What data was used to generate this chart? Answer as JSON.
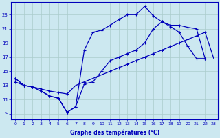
{
  "xlabel": "Graphe des températures (°C)",
  "background_color": "#cce8f0",
  "line_color": "#0000bb",
  "grid_color": "#aacccc",
  "x_ticks": [
    0,
    1,
    2,
    3,
    4,
    5,
    6,
    7,
    8,
    9,
    10,
    11,
    12,
    13,
    14,
    15,
    16,
    17,
    18,
    19,
    20,
    21,
    22,
    23
  ],
  "y_ticks": [
    9,
    11,
    13,
    15,
    17,
    19,
    21,
    23
  ],
  "ylim": [
    8.2,
    24.8
  ],
  "xlim": [
    -0.5,
    23.5
  ],
  "line1_x": [
    0,
    1,
    2,
    3,
    4,
    5,
    6,
    7,
    8,
    9,
    10,
    11,
    12,
    13,
    14,
    15,
    16,
    17,
    18,
    19,
    20,
    21,
    22
  ],
  "line1_y": [
    14.0,
    13.0,
    12.8,
    12.2,
    11.5,
    11.2,
    9.2,
    10.0,
    13.2,
    13.5,
    15.0,
    16.5,
    17.0,
    17.5,
    18.0,
    19.0,
    21.0,
    22.0,
    21.5,
    21.5,
    21.2,
    21.0,
    16.8
  ],
  "line2_x": [
    0,
    1,
    2,
    3,
    4,
    5,
    6,
    7,
    8,
    9,
    10,
    11,
    12,
    13,
    14,
    15,
    16,
    17,
    18,
    19,
    20,
    21,
    22,
    23
  ],
  "line2_y": [
    13.5,
    13.0,
    12.8,
    12.5,
    12.2,
    12.0,
    11.8,
    13.0,
    13.5,
    14.0,
    14.5,
    15.0,
    15.5,
    16.0,
    16.5,
    17.0,
    17.5,
    18.0,
    18.5,
    19.0,
    19.5,
    20.0,
    20.5,
    16.8
  ],
  "line3_x": [
    0,
    1,
    2,
    3,
    4,
    5,
    6,
    7,
    8,
    9,
    10,
    11,
    12,
    13,
    14,
    15,
    16,
    17,
    18,
    19,
    20,
    21,
    22
  ],
  "line3_y": [
    14.0,
    13.0,
    12.8,
    12.2,
    11.5,
    11.2,
    9.2,
    10.0,
    18.0,
    20.5,
    20.8,
    21.5,
    22.3,
    23.0,
    23.0,
    24.2,
    22.8,
    22.0,
    21.3,
    20.5,
    18.5,
    16.8,
    16.8
  ]
}
